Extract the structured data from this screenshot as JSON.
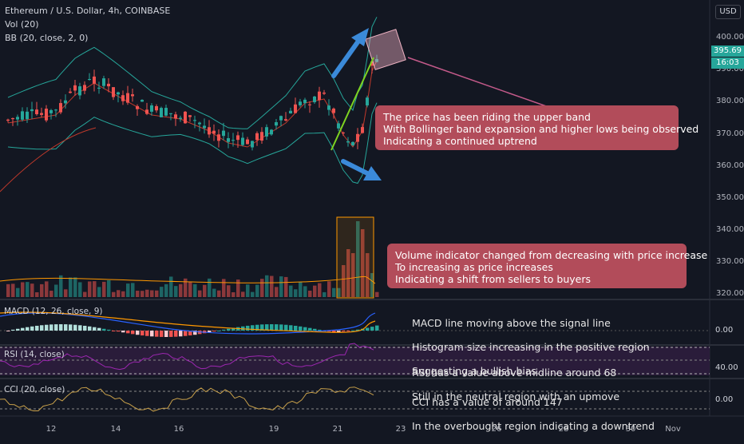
{
  "header": {
    "symbol": "Ethereum / U.S. Dollar, 4h, COINBASE",
    "vol": "Vol (20)",
    "bb": "BB (20, close, 2, 0)"
  },
  "price_axis": {
    "currency": "USD",
    "labels": [
      "400.00",
      "390.00",
      "380.00",
      "370.00",
      "360.00",
      "350.00",
      "340.00",
      "330.00",
      "320.00"
    ],
    "last_price": "395.69",
    "countdown": "16:03"
  },
  "time_axis": {
    "labels": [
      "12",
      "14",
      "16",
      "19",
      "21",
      "23",
      "26",
      "28",
      "30",
      "Nov"
    ]
  },
  "panes": {
    "macd": {
      "label": "MACD (12, 26, close, 9)",
      "value": "0.00"
    },
    "rsi": {
      "label": "RSI (14, close)",
      "value": "40.00"
    },
    "cci": {
      "label": "CCI (20, close)",
      "value": "0.00"
    }
  },
  "annotations": {
    "bollinger": [
      "The price has been riding the upper band",
      "With Bollinger band expansion and higher lows being observed",
      "Indicating a continued uptrend"
    ],
    "volume": [
      "Volume indicator changed from decreasing with price increase",
      "To increasing as price increases",
      "Indicating a shift from sellers to buyers"
    ],
    "macd": [
      "MACD line moving above the signal line",
      "Histogram size increasing in the positive region",
      "Suggesting a bullish bias"
    ],
    "rsi": [
      "RSI has a value above midline around 68",
      "Still in the neutral region with an upmove"
    ],
    "cci": [
      "CCI has a value of around 147",
      "In the overbought region indicating a downtrend"
    ]
  },
  "colors": {
    "background": "#131722",
    "up": "#26a69a",
    "down": "#ef5350",
    "box": "#b24c5a",
    "arrow": "#3b8ad9",
    "trendline": "#7ed321",
    "rsi": "#9c27b0",
    "macd": "#2962ff",
    "signal": "#ff9800"
  }
}
